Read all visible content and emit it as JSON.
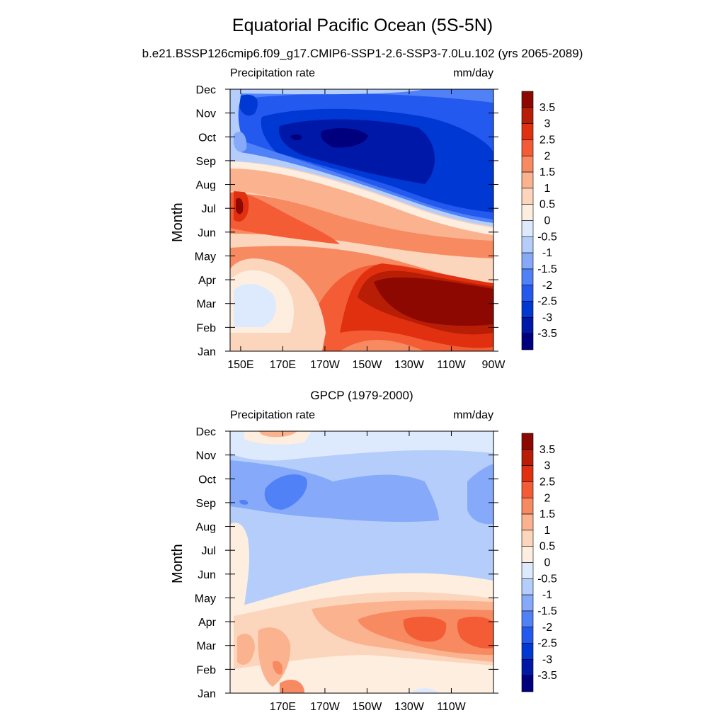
{
  "title": "Equatorial Pacific Ocean (5S-5N)",
  "subtitle": "b.e21.BSSP126cmip6.f09_g17.CMIP6-SSP1-2.6-SSP3-7.0Lu.102 (yrs 2065-2089)",
  "colors": {
    "levels": [
      "#00007f",
      "#0018a8",
      "#0038d4",
      "#2459f0",
      "#5081f7",
      "#86aaf9",
      "#b4cdfb",
      "#dde9fd",
      "#fdeee0",
      "#fcd5bd",
      "#fbb38f",
      "#f88a62",
      "#f35c35",
      "#e03010",
      "#b81d06",
      "#8c0800"
    ]
  },
  "chart_data": [
    {
      "type": "heatmap",
      "name": "model",
      "left_label": "Precipitation rate",
      "right_label": "mm/day",
      "ylabel": "Month",
      "x_ticks": [
        "150E",
        "170E",
        "170W",
        "150W",
        "130W",
        "110W",
        "90W"
      ],
      "y_ticks": [
        "Jan",
        "Feb",
        "Mar",
        "Apr",
        "May",
        "Jun",
        "Jul",
        "Aug",
        "Sep",
        "Oct",
        "Nov",
        "Dec"
      ],
      "colorbar_labels": [
        "3.5",
        "3",
        "2.5",
        "2",
        "1.5",
        "1",
        "0.5",
        "0",
        "-0.5",
        "-1",
        "-1.5",
        "-2",
        "-2.5",
        "-3",
        "-3.5"
      ],
      "xlim": [
        "145E",
        "90W"
      ],
      "contour_levels": [
        -3.5,
        -3,
        -2.5,
        -2,
        -1.5,
        -1,
        -0.5,
        0,
        0.5,
        1,
        1.5,
        2,
        2.5,
        3,
        3.5
      ]
    },
    {
      "type": "heatmap",
      "name": "observed",
      "title": "GPCP (1979-2000)",
      "left_label": "Precipitation rate",
      "right_label": "mm/day",
      "ylabel": "Month",
      "x_ticks": [
        "170E",
        "170W",
        "150W",
        "130W",
        "110W"
      ],
      "y_ticks": [
        "Jan",
        "Feb",
        "Mar",
        "Apr",
        "May",
        "Jun",
        "Jul",
        "Aug",
        "Sep",
        "Oct",
        "Nov",
        "Dec"
      ],
      "colorbar_labels": [
        "3.5",
        "3",
        "2.5",
        "2",
        "1.5",
        "1",
        "0.5",
        "0",
        "-0.5",
        "-1",
        "-1.5",
        "-2",
        "-2.5",
        "-3",
        "-3.5"
      ],
      "xlim": [
        "145E",
        "90W"
      ],
      "contour_levels": [
        -3.5,
        -3,
        -2.5,
        -2,
        -1.5,
        -1,
        -0.5,
        0,
        0.5,
        1,
        1.5,
        2,
        2.5,
        3,
        3.5
      ]
    }
  ]
}
